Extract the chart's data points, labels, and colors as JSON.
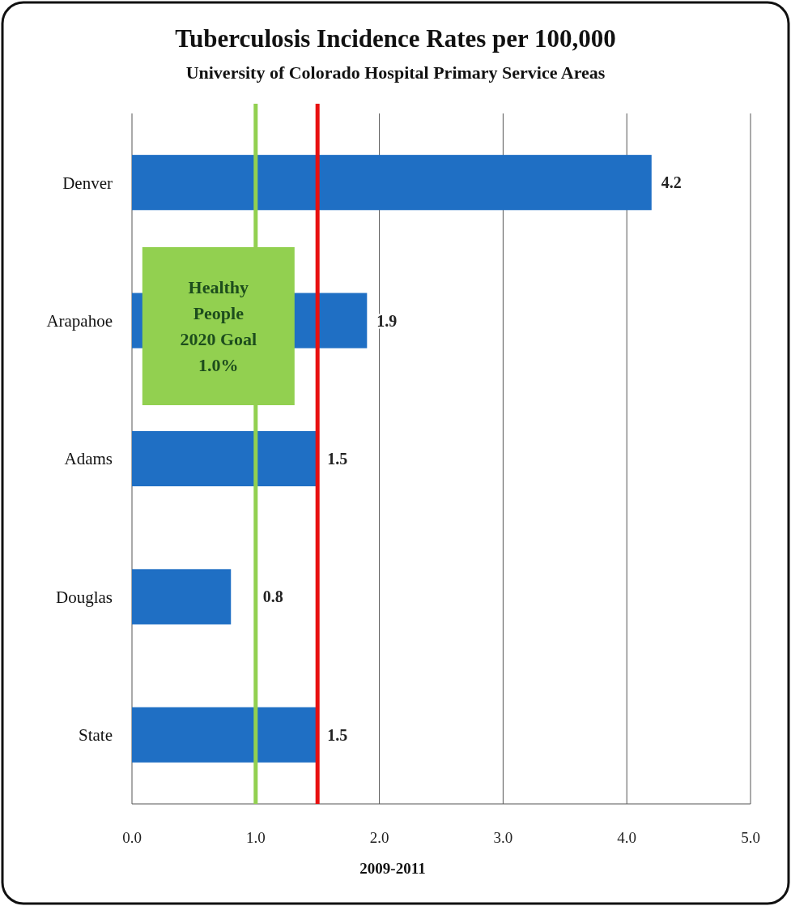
{
  "chart_data": {
    "type": "bar",
    "orientation": "horizontal",
    "title": "Tuberculosis Incidence Rates per 100,000",
    "subtitle": "University of Colorado Hospital Primary Service Areas",
    "xlabel": "2009-2011",
    "categories": [
      "Denver",
      "Arapahoe",
      "Adams",
      "Douglas",
      "State"
    ],
    "values": [
      4.2,
      1.9,
      1.5,
      0.8,
      1.5
    ],
    "color": "#1f6fc4",
    "xlim": [
      0,
      5
    ],
    "xticks": [
      {
        "value": 0,
        "label": "0.0"
      },
      {
        "value": 1,
        "label": "1.0"
      },
      {
        "value": 2,
        "label": "2.0"
      },
      {
        "value": 3,
        "label": "3.0"
      },
      {
        "value": 4,
        "label": "4.0"
      },
      {
        "value": 5,
        "label": "5.0"
      }
    ],
    "grid": "x",
    "data_labels": true,
    "ref_lines": [
      {
        "axis": "x",
        "value": 1.0,
        "label": "Healthy People 2020 Goal 1.0%",
        "color": "#92d050"
      },
      {
        "axis": "x",
        "value": 1.5,
        "color": "#e81010"
      }
    ]
  }
}
